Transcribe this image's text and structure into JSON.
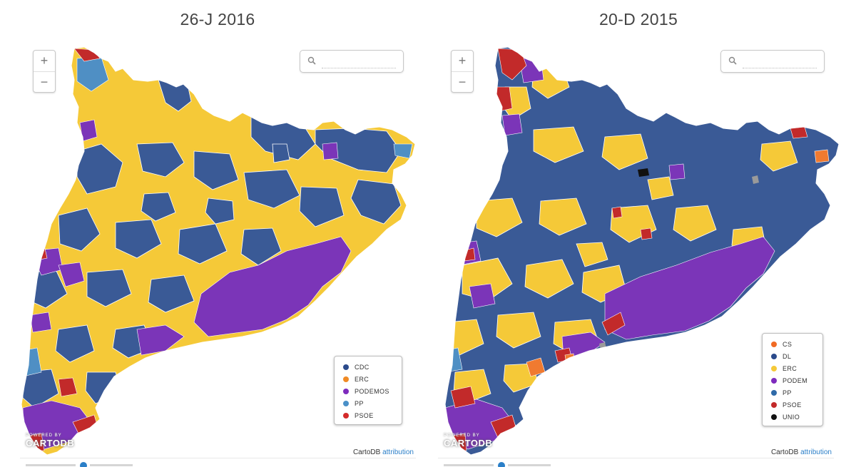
{
  "maps": [
    {
      "title": "26-J 2016",
      "zoom_in": "+",
      "zoom_out": "−",
      "search_icon": "search-icon",
      "legend": [
        {
          "label": "CDC",
          "color": "#2b4a8b"
        },
        {
          "label": "ERC",
          "color": "#f08a24"
        },
        {
          "label": "PODEMOS",
          "color": "#7e2bbd"
        },
        {
          "label": "PP",
          "color": "#4a90c8"
        },
        {
          "label": "PSOE",
          "color": "#d42a2a"
        }
      ],
      "region_colors": {
        "dominant_a": "#f5c938",
        "dominant_b": "#3a5a96",
        "accent": "#7b35b8",
        "extra_1": "#4f8fc4",
        "extra_2": "#c22a2a"
      },
      "logo_powered": "POWERED BY",
      "logo_name": "CARTODB",
      "attribution_prefix": "CartoDB",
      "attribution_link": "attribution"
    },
    {
      "title": "20-D 2015",
      "zoom_in": "+",
      "zoom_out": "−",
      "search_icon": "search-icon",
      "legend": [
        {
          "label": "CS",
          "color": "#f06a24"
        },
        {
          "label": "DL",
          "color": "#2b4a8b"
        },
        {
          "label": "ERC",
          "color": "#f5c938"
        },
        {
          "label": "PODEM",
          "color": "#7e2bbd"
        },
        {
          "label": "PP",
          "color": "#2f6aa8"
        },
        {
          "label": "PSOE",
          "color": "#c22a2a"
        },
        {
          "label": "UNIO",
          "color": "#111111"
        }
      ],
      "region_colors": {
        "dominant_a": "#3a5a96",
        "dominant_b": "#f5c938",
        "accent": "#7b35b8",
        "extra_1": "#c22a2a",
        "extra_2": "#f07a30"
      },
      "logo_powered": "POWERED BY",
      "logo_name": "CARTODB",
      "attribution_prefix": "CartoDB",
      "attribution_link": "attribution"
    }
  ]
}
